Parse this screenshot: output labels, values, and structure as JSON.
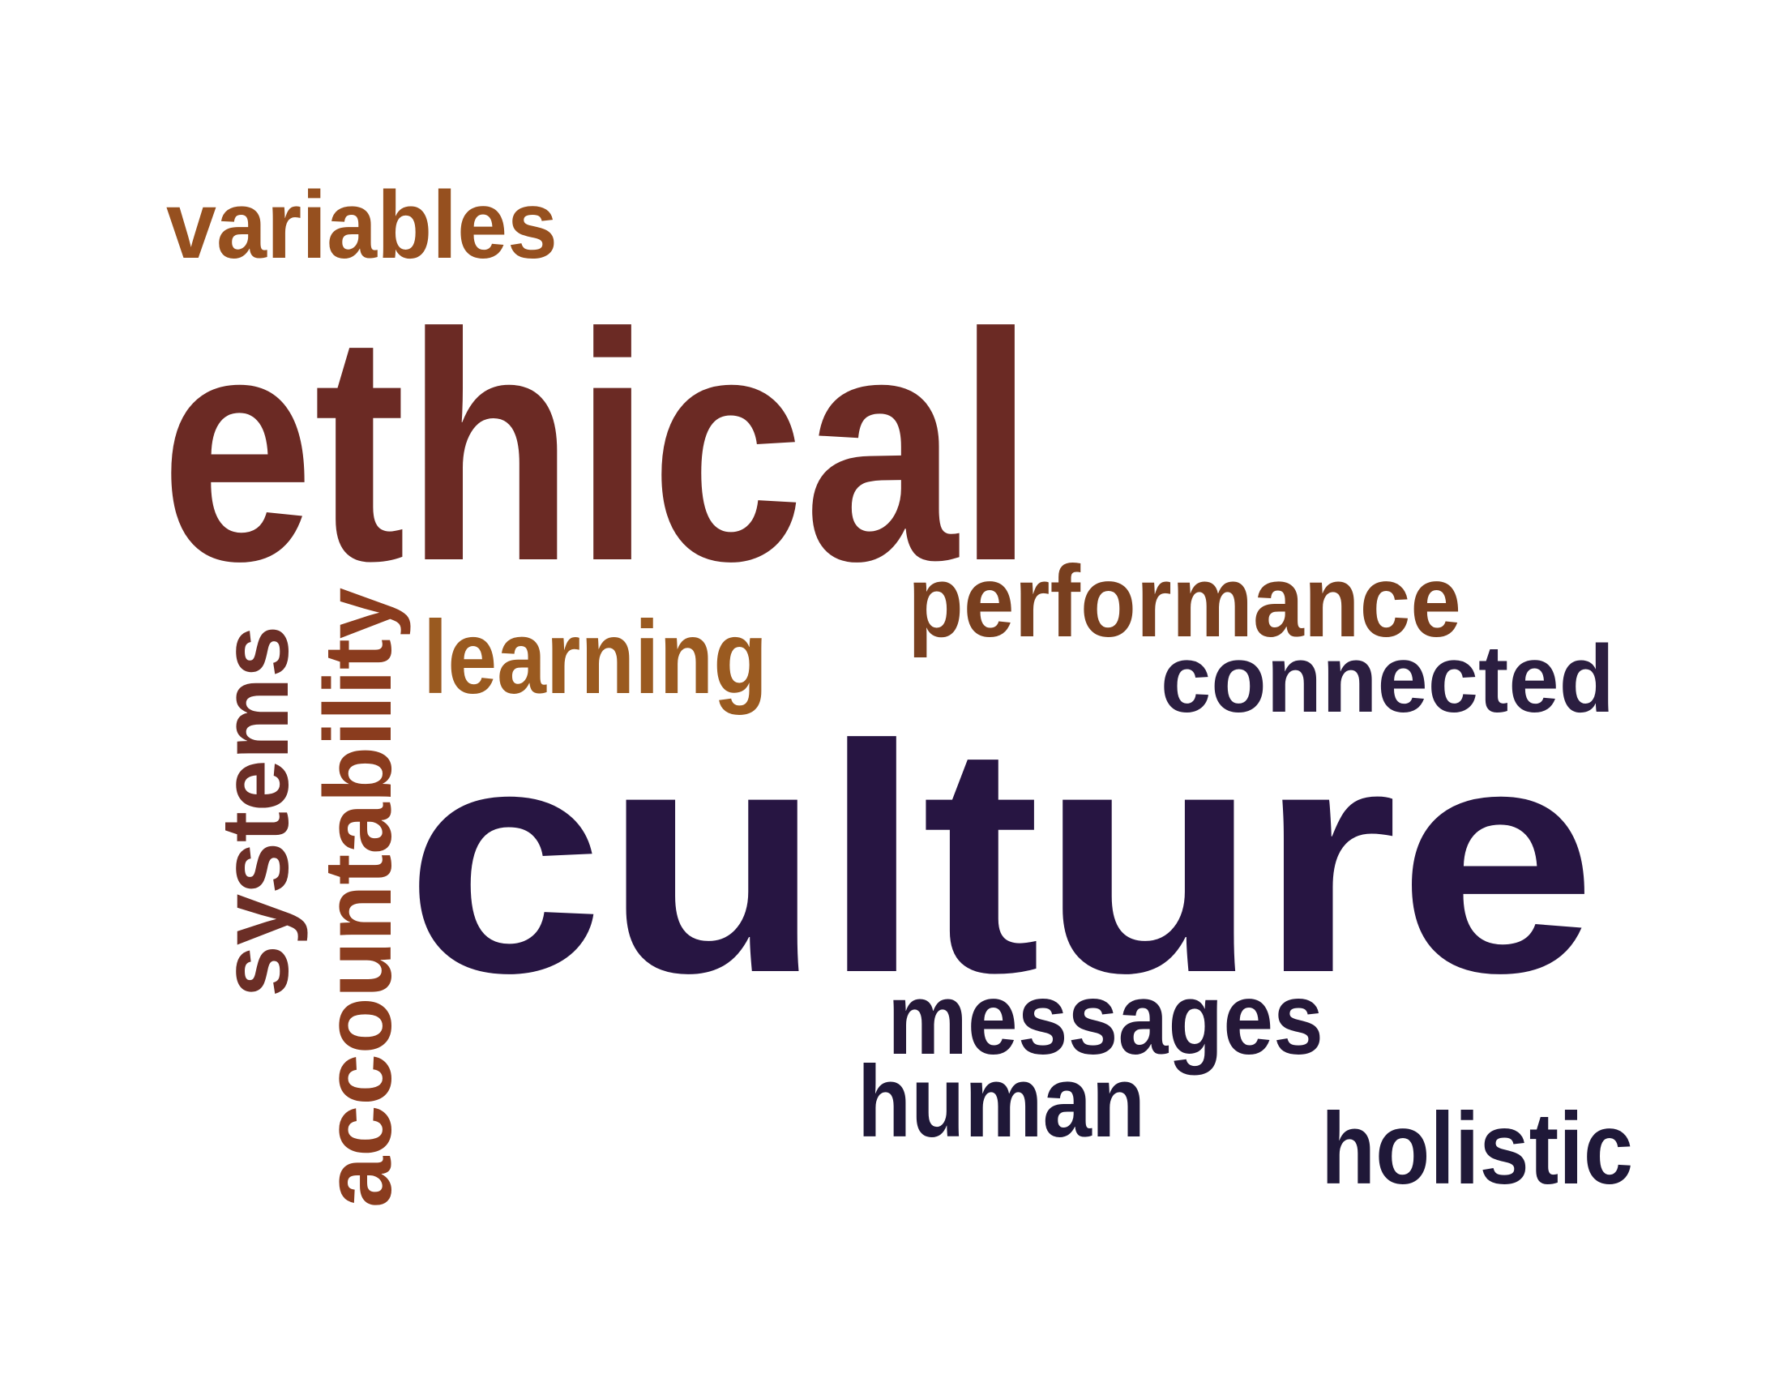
{
  "words": [
    {
      "text": "variables",
      "color": "#96501f"
    },
    {
      "text": "ethical",
      "color": "#6b2a24"
    },
    {
      "text": "performance",
      "color": "#783f1f"
    },
    {
      "text": "connected",
      "color": "#2b1e40"
    },
    {
      "text": "learning",
      "color": "#9a5a20"
    },
    {
      "text": "accountability",
      "color": "#8a3c1e"
    },
    {
      "text": "systems",
      "color": "#6b2e26"
    },
    {
      "text": "culture",
      "color": "#271542"
    },
    {
      "text": "messages",
      "color": "#251838"
    },
    {
      "text": "human",
      "color": "#1f1838"
    },
    {
      "text": "holistic",
      "color": "#1f1838"
    }
  ]
}
